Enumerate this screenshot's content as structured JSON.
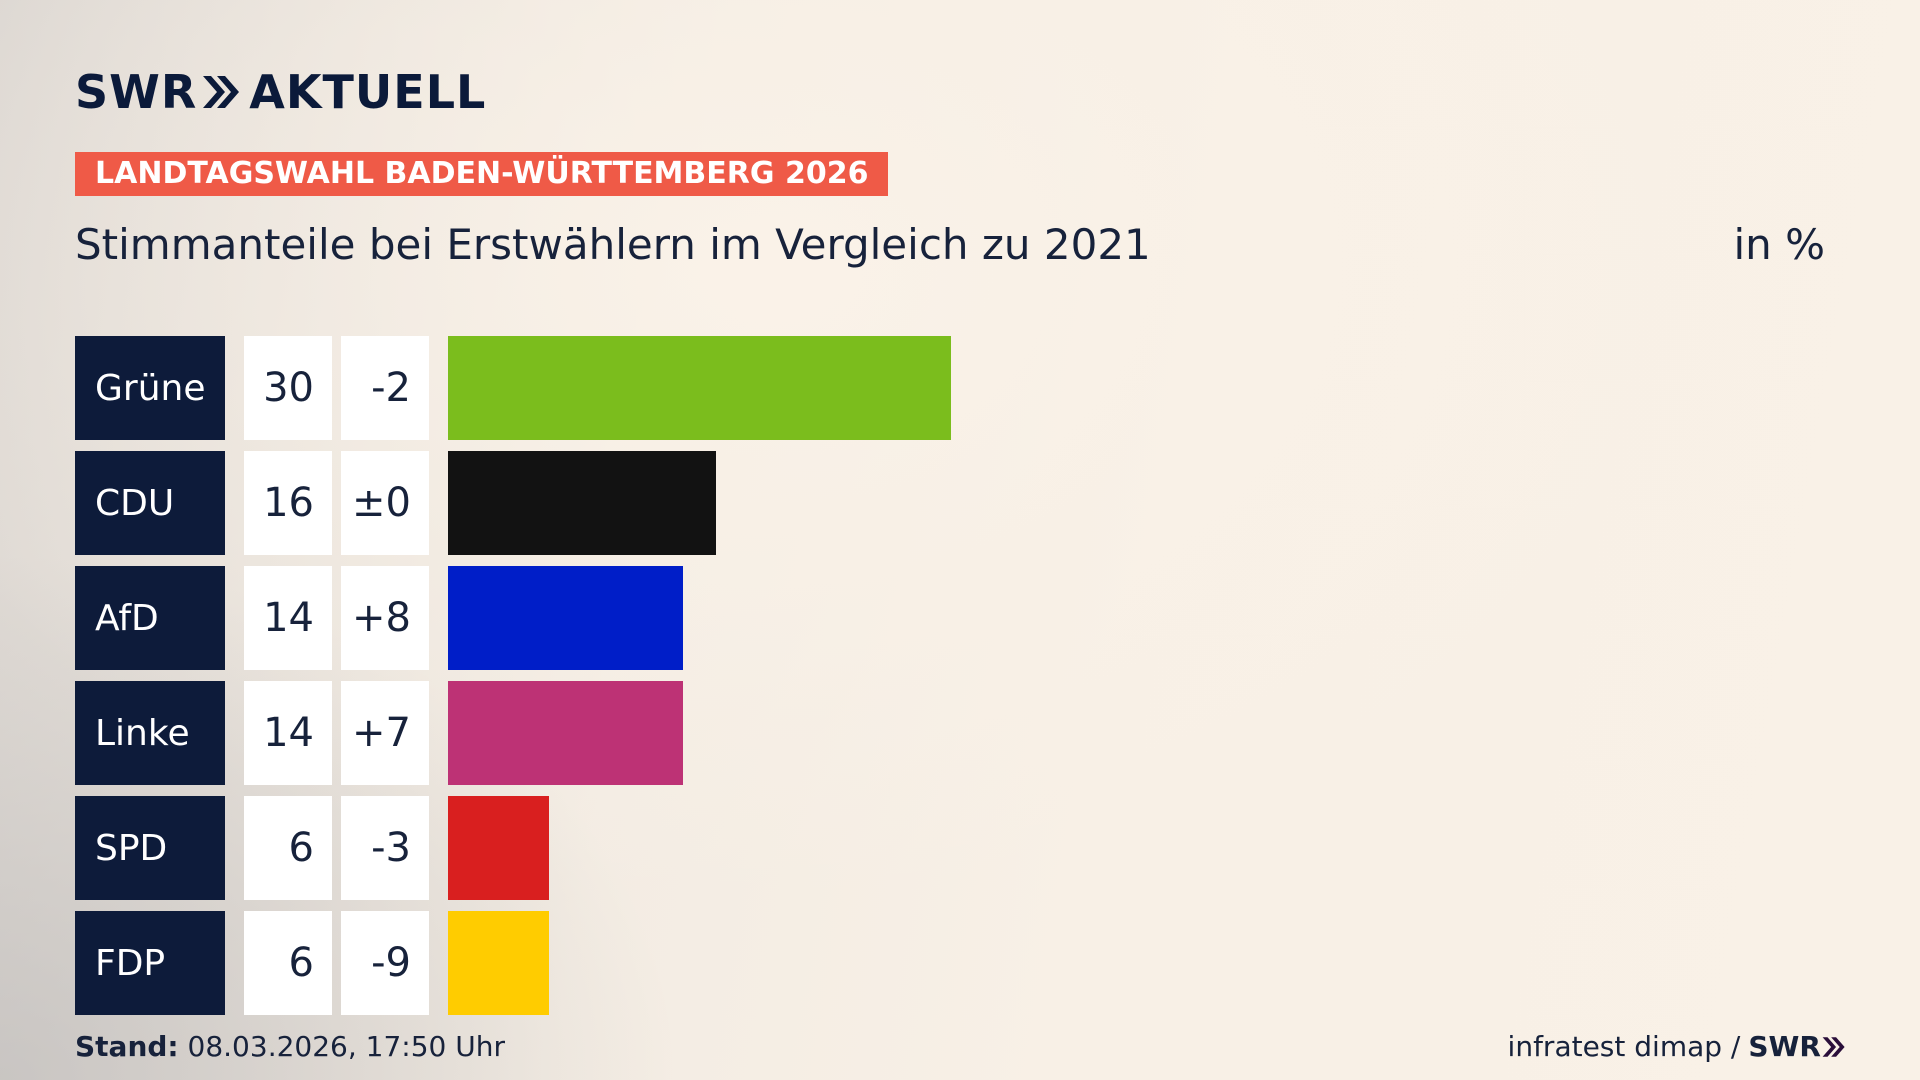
{
  "brand": {
    "logo_left": "SWR",
    "logo_right": "AKTUELL"
  },
  "banner": "LANDTAGSWAHL BADEN-WÜRTTEMBERG 2026",
  "subtitle": "Stimmanteile bei Erstwählern im Vergleich zu 2021",
  "unit": "in %",
  "colors": {
    "accent": "#ef5a47",
    "navy": "#0d1b3a"
  },
  "chart_data": {
    "type": "bar",
    "orientation": "horizontal",
    "categories": [
      "Grüne",
      "CDU",
      "AfD",
      "Linke",
      "SPD",
      "FDP"
    ],
    "values": [
      30,
      16,
      14,
      14,
      6,
      6
    ],
    "value_labels": [
      "30",
      "16",
      "14",
      "14",
      "6",
      "6"
    ],
    "change_labels": [
      "-2",
      "±0",
      "+8",
      "+7",
      "-3",
      "-9"
    ],
    "changes": [
      -2,
      0,
      8,
      7,
      -3,
      -9
    ],
    "colors": [
      "#7bbd1d",
      "#121212",
      "#001ec8",
      "#bd3275",
      "#d91f1f",
      "#ffcc00"
    ],
    "xlim": [
      0,
      50
    ],
    "title": "Stimmanteile bei Erstwählern im Vergleich zu 2021",
    "grid": false,
    "legend": "none"
  },
  "footer": {
    "stand_label": "Stand:",
    "stand_value": "08.03.2026, 17:50 Uhr",
    "source": "infratest dimap /",
    "source_brand": "SWR"
  }
}
